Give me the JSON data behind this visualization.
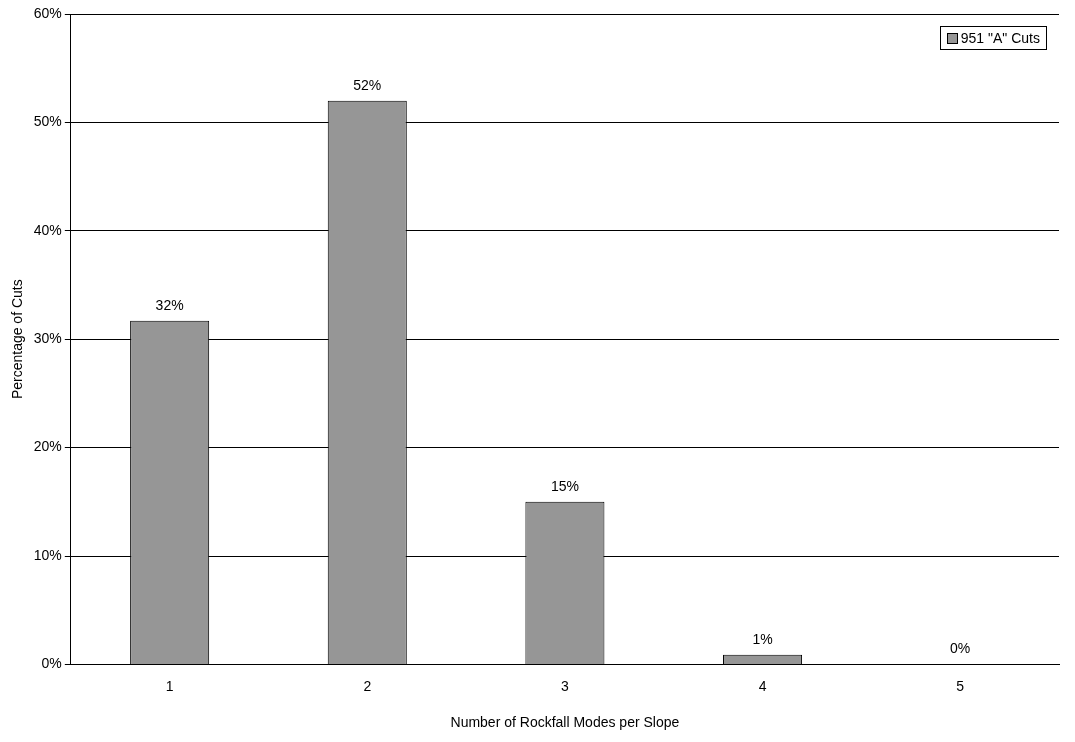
{
  "chart_data": {
    "type": "bar",
    "xlabel": "Number of Rockfall Modes per Slope",
    "ylabel": "Percentage of Cuts",
    "categories": [
      "1",
      "2",
      "3",
      "4",
      "5"
    ],
    "series": [
      {
        "name": "951 \"A\" Cuts",
        "color": "#969696",
        "values": [
          31.7,
          52,
          15,
          0.9,
          0
        ],
        "value_labels": [
          "32%",
          "52%",
          "15%",
          "1%",
          "0%"
        ]
      }
    ],
    "ylim": [
      0,
      60
    ],
    "yticks": [
      {
        "value": 0,
        "label": "0%"
      },
      {
        "value": 10,
        "label": "10%"
      },
      {
        "value": 20,
        "label": "20%"
      },
      {
        "value": 30,
        "label": "30%"
      },
      {
        "value": 40,
        "label": "40%"
      },
      {
        "value": 50,
        "label": "50%"
      },
      {
        "value": 60,
        "label": "60%"
      }
    ],
    "grid": "y",
    "legend": "top right"
  }
}
